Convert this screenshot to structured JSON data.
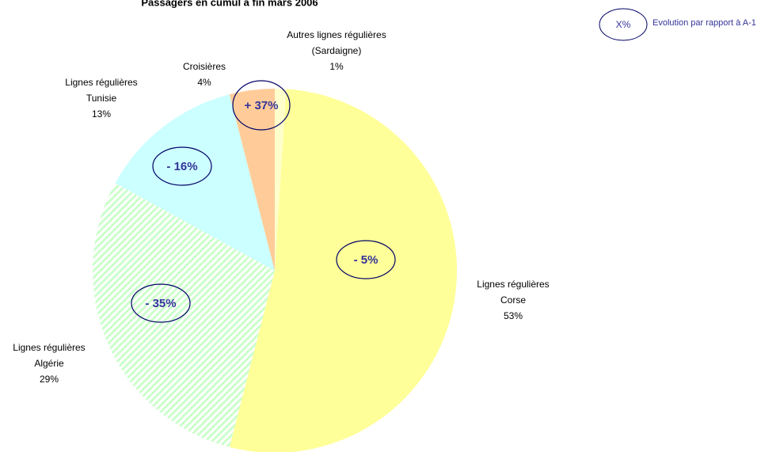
{
  "chart_data": {
    "type": "pie",
    "title": "Passagers en cumul à fin mars 2006",
    "categories": [
      "Autres lignes régulières\n(Sardaigne)",
      "Lignes régulières\nCorse",
      "Lignes régulières\nAlgérie",
      "Lignes régulières\nTunisie",
      "Croisières"
    ],
    "values": [
      1,
      53,
      29,
      13,
      4
    ],
    "value_labels": [
      "1%",
      "53%",
      "29%",
      "13%",
      "4%"
    ],
    "colors": [
      "#ffffcc",
      "#ffff99",
      "#ccffcc",
      "#ccffff",
      "#ffcc99"
    ],
    "evolutions": [
      null,
      "- 5%",
      "- 35%",
      "- 16%",
      "+ 37%"
    ],
    "legend": {
      "symbol": "X%",
      "text": "Evolution par rapport à A-1"
    }
  }
}
